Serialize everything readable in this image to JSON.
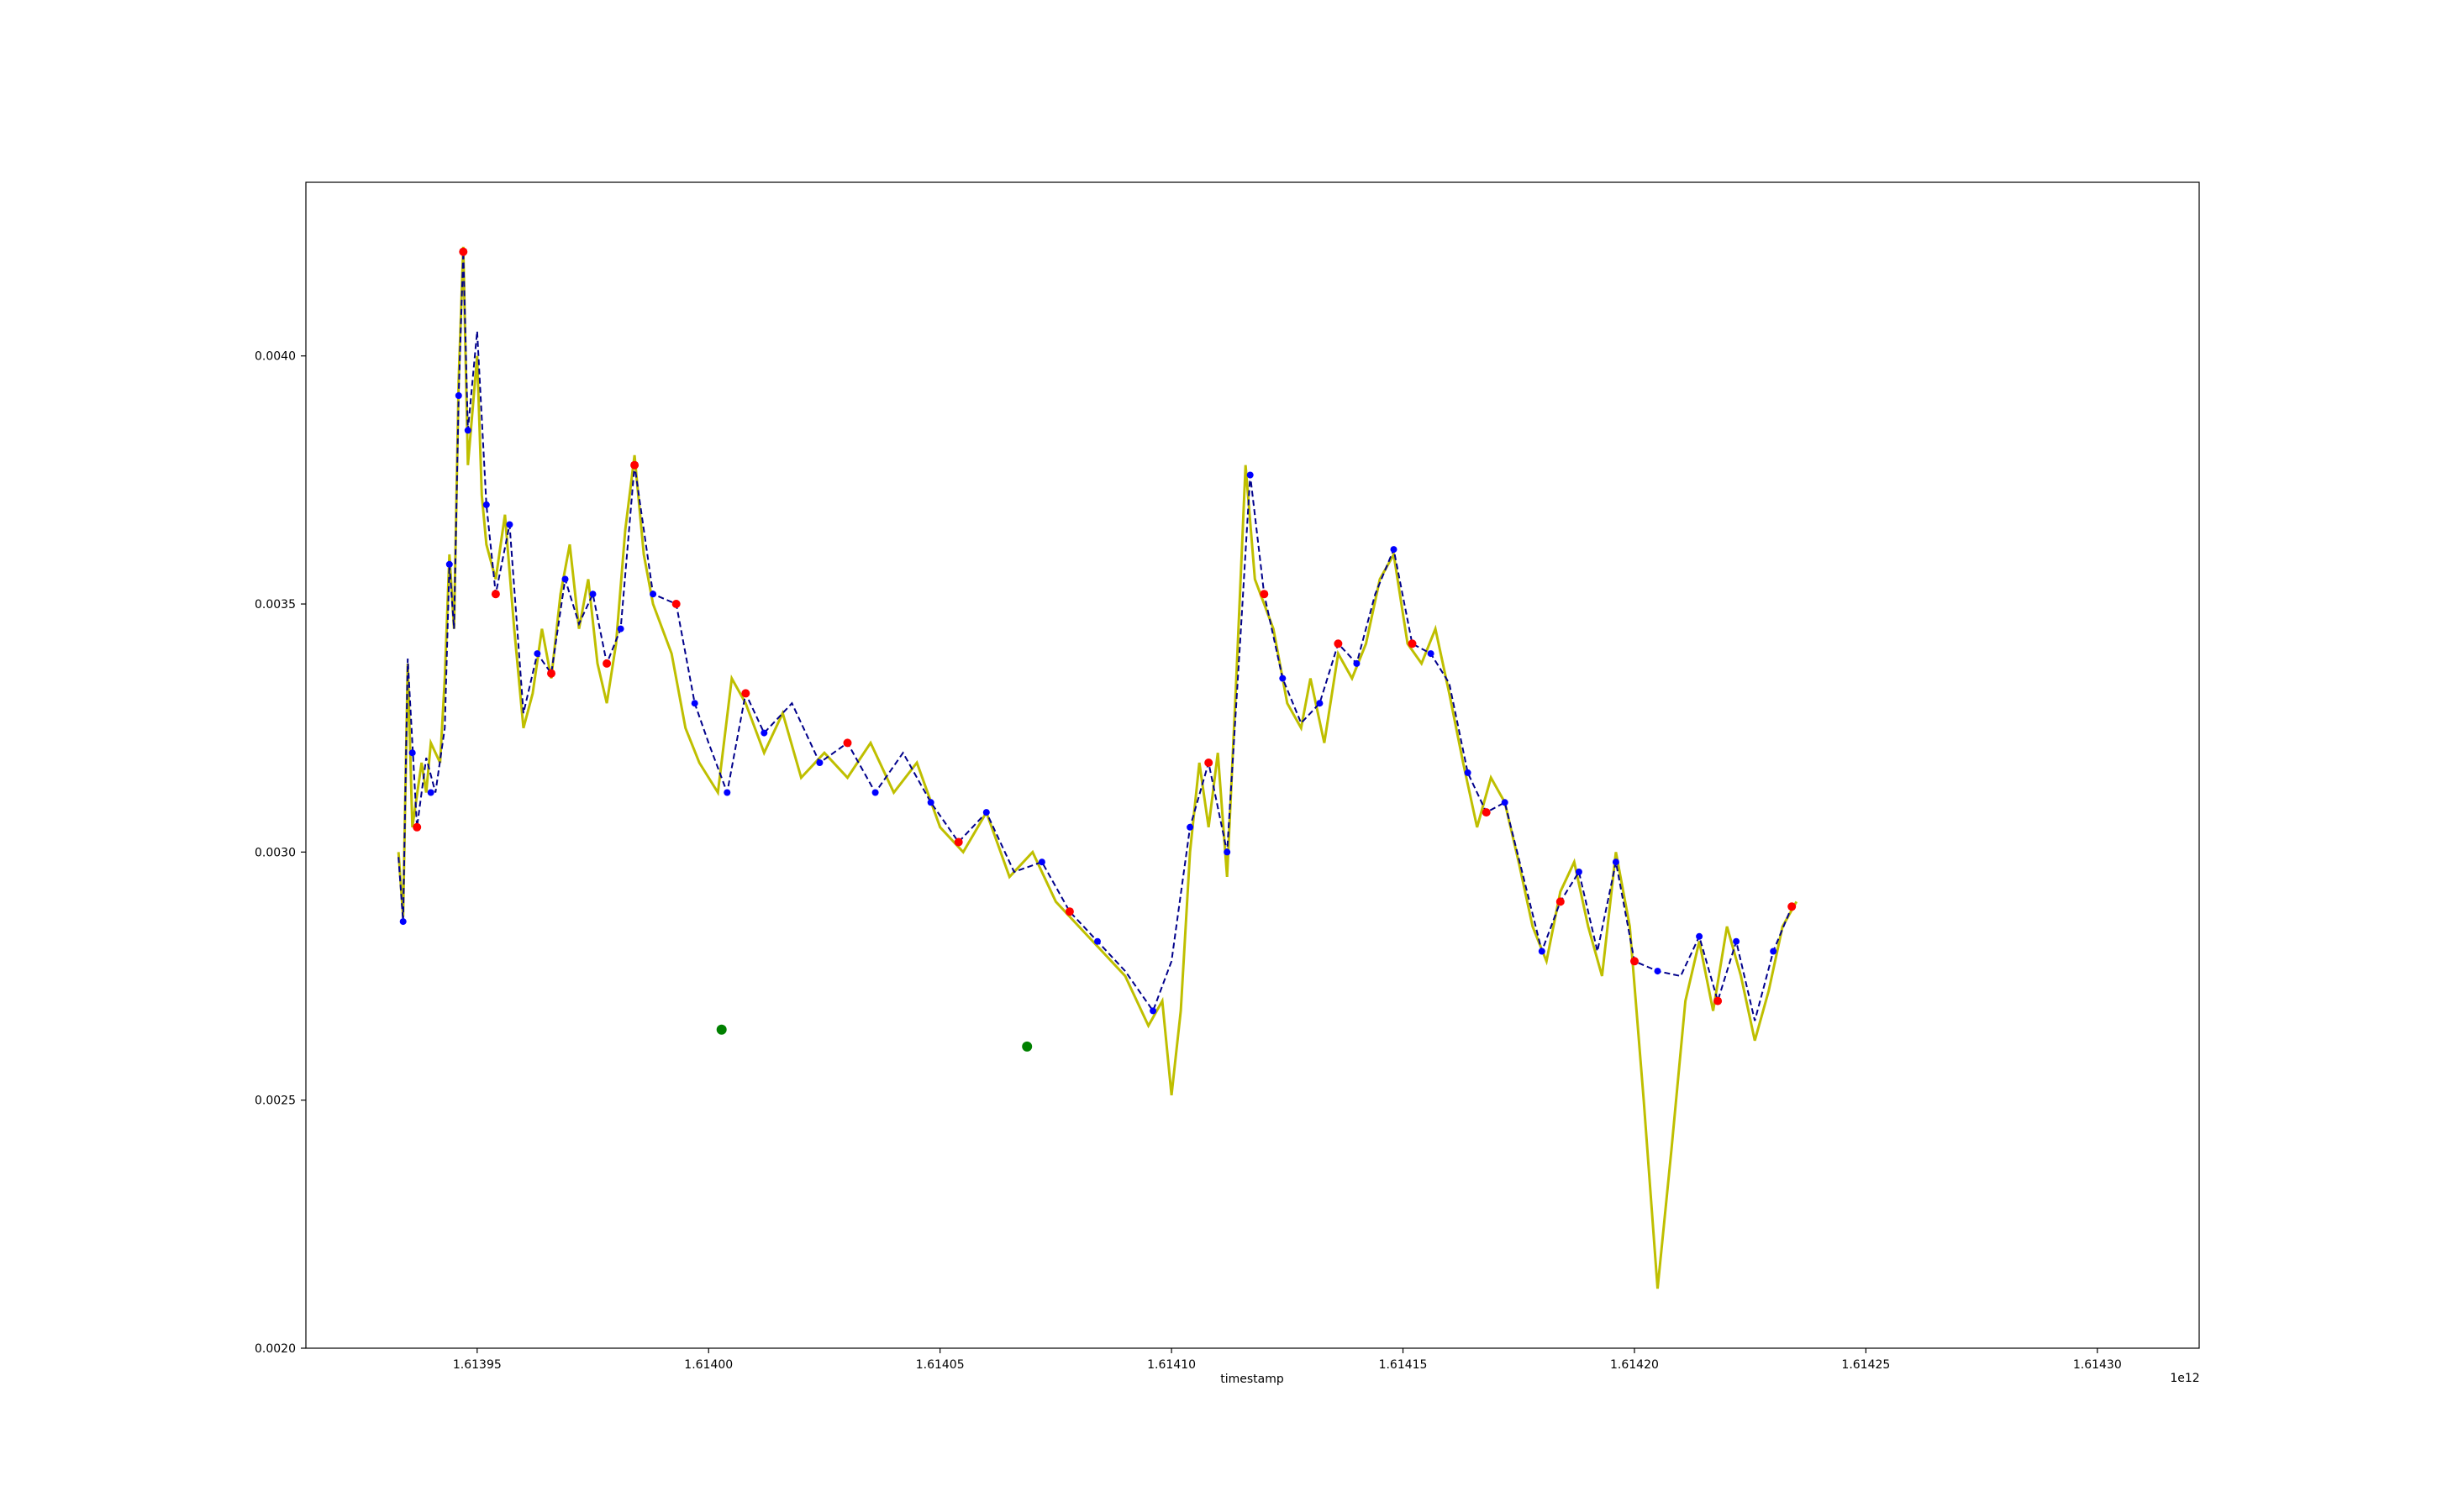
{
  "chart_data": {
    "type": "line",
    "title": "",
    "xlabel": "timestamp",
    "ylabel": "",
    "x_offset_label": "1e12",
    "xlim": [
      1.613913,
      1.614322
    ],
    "ylim": [
      0.002,
      0.00435
    ],
    "x_ticks": [
      1.61395,
      1.614,
      1.61405,
      1.6141,
      1.61415,
      1.6142,
      1.61425,
      1.6143
    ],
    "x_tick_labels": [
      "1.61395",
      "1.61400",
      "1.61405",
      "1.61410",
      "1.61415",
      "1.61420",
      "1.61425",
      "1.61430"
    ],
    "y_ticks": [
      0.002,
      0.0025,
      0.003,
      0.0035,
      0.004
    ],
    "y_tick_labels": [
      "0.0020",
      "0.0025",
      "0.0030",
      "0.0035",
      "0.0040"
    ],
    "grid": false,
    "legend": "none",
    "colors": {
      "price_line": "#bfbf00",
      "smoothed_line": "#00008b",
      "blue_markers": "#0000ff",
      "red_markers": "#ff0000",
      "green_markers": "#008000"
    },
    "series": [
      {
        "style": "solid",
        "color": "#bfbf00",
        "points": [
          [
            1.613933,
            0.003
          ],
          [
            1.613934,
            0.00287
          ],
          [
            1.613935,
            0.00338
          ],
          [
            1.613936,
            0.00305
          ],
          [
            1.613938,
            0.00318
          ],
          [
            1.613939,
            0.00312
          ],
          [
            1.61394,
            0.00322
          ],
          [
            1.613942,
            0.00318
          ],
          [
            1.613943,
            0.00335
          ],
          [
            1.613944,
            0.0036
          ],
          [
            1.613945,
            0.00345
          ],
          [
            1.613946,
            0.00395
          ],
          [
            1.613947,
            0.00422
          ],
          [
            1.613948,
            0.00378
          ],
          [
            1.61395,
            0.004
          ],
          [
            1.613951,
            0.00372
          ],
          [
            1.613952,
            0.00362
          ],
          [
            1.613954,
            0.00355
          ],
          [
            1.613956,
            0.00368
          ],
          [
            1.613958,
            0.00345
          ],
          [
            1.61396,
            0.00325
          ],
          [
            1.613962,
            0.00332
          ],
          [
            1.613964,
            0.00345
          ],
          [
            1.613966,
            0.00335
          ],
          [
            1.613968,
            0.00352
          ],
          [
            1.61397,
            0.00362
          ],
          [
            1.613972,
            0.00345
          ],
          [
            1.613974,
            0.00355
          ],
          [
            1.613976,
            0.00338
          ],
          [
            1.613978,
            0.0033
          ],
          [
            1.61398,
            0.00342
          ],
          [
            1.613982,
            0.00365
          ],
          [
            1.613984,
            0.0038
          ],
          [
            1.613986,
            0.0036
          ],
          [
            1.613988,
            0.0035
          ],
          [
            1.613992,
            0.0034
          ],
          [
            1.613995,
            0.00325
          ],
          [
            1.613998,
            0.00318
          ],
          [
            1.614002,
            0.00312
          ],
          [
            1.614005,
            0.00335
          ],
          [
            1.614008,
            0.0033
          ],
          [
            1.614012,
            0.0032
          ],
          [
            1.614016,
            0.00328
          ],
          [
            1.61402,
            0.00315
          ],
          [
            1.614025,
            0.0032
          ],
          [
            1.61403,
            0.00315
          ],
          [
            1.614035,
            0.00322
          ],
          [
            1.61404,
            0.00312
          ],
          [
            1.614045,
            0.00318
          ],
          [
            1.61405,
            0.00305
          ],
          [
            1.614055,
            0.003
          ],
          [
            1.61406,
            0.00308
          ],
          [
            1.614065,
            0.00295
          ],
          [
            1.61407,
            0.003
          ],
          [
            1.614075,
            0.0029
          ],
          [
            1.61408,
            0.00285
          ],
          [
            1.614085,
            0.0028
          ],
          [
            1.61409,
            0.00275
          ],
          [
            1.614095,
            0.00265
          ],
          [
            1.614098,
            0.0027
          ],
          [
            1.6141,
            0.00251
          ],
          [
            1.614102,
            0.00268
          ],
          [
            1.614104,
            0.003
          ],
          [
            1.614106,
            0.00318
          ],
          [
            1.614108,
            0.00305
          ],
          [
            1.61411,
            0.0032
          ],
          [
            1.614112,
            0.00295
          ],
          [
            1.614114,
            0.00335
          ],
          [
            1.614116,
            0.00378
          ],
          [
            1.614118,
            0.00355
          ],
          [
            1.61412,
            0.0035
          ],
          [
            1.614122,
            0.00345
          ],
          [
            1.614125,
            0.0033
          ],
          [
            1.614128,
            0.00325
          ],
          [
            1.61413,
            0.00335
          ],
          [
            1.614133,
            0.00322
          ],
          [
            1.614136,
            0.0034
          ],
          [
            1.614139,
            0.00335
          ],
          [
            1.614142,
            0.00342
          ],
          [
            1.614145,
            0.00355
          ],
          [
            1.614148,
            0.0036
          ],
          [
            1.614151,
            0.00342
          ],
          [
            1.614154,
            0.00338
          ],
          [
            1.614157,
            0.00345
          ],
          [
            1.61416,
            0.00332
          ],
          [
            1.614163,
            0.00318
          ],
          [
            1.614166,
            0.00305
          ],
          [
            1.614169,
            0.00315
          ],
          [
            1.614172,
            0.0031
          ],
          [
            1.614175,
            0.00298
          ],
          [
            1.614178,
            0.00285
          ],
          [
            1.614181,
            0.00278
          ],
          [
            1.614184,
            0.00292
          ],
          [
            1.614187,
            0.00298
          ],
          [
            1.61419,
            0.00285
          ],
          [
            1.614193,
            0.00275
          ],
          [
            1.614196,
            0.003
          ],
          [
            1.614199,
            0.00285
          ],
          [
            1.614202,
            0.0025
          ],
          [
            1.614205,
            0.00212
          ],
          [
            1.614208,
            0.0024
          ],
          [
            1.614211,
            0.0027
          ],
          [
            1.614214,
            0.00282
          ],
          [
            1.614217,
            0.00268
          ],
          [
            1.61422,
            0.00285
          ],
          [
            1.614223,
            0.00275
          ],
          [
            1.614226,
            0.00262
          ],
          [
            1.614229,
            0.00272
          ],
          [
            1.614232,
            0.00285
          ],
          [
            1.614235,
            0.0029
          ]
        ]
      },
      {
        "style": "dashed",
        "color": "#00008b",
        "points": [
          [
            1.613933,
            0.00299
          ],
          [
            1.613934,
            0.00286
          ],
          [
            1.613935,
            0.00339
          ],
          [
            1.613937,
            0.00305
          ],
          [
            1.613939,
            0.00319
          ],
          [
            1.613941,
            0.00312
          ],
          [
            1.613943,
            0.00325
          ],
          [
            1.613944,
            0.00358
          ],
          [
            1.613945,
            0.00345
          ],
          [
            1.613946,
            0.00392
          ],
          [
            1.613947,
            0.00421
          ],
          [
            1.613948,
            0.00385
          ],
          [
            1.61395,
            0.00405
          ],
          [
            1.613952,
            0.0037
          ],
          [
            1.613954,
            0.00352
          ],
          [
            1.613957,
            0.00366
          ],
          [
            1.61396,
            0.00328
          ],
          [
            1.613963,
            0.0034
          ],
          [
            1.613966,
            0.00336
          ],
          [
            1.613969,
            0.00355
          ],
          [
            1.613972,
            0.00346
          ],
          [
            1.613975,
            0.00352
          ],
          [
            1.613978,
            0.00338
          ],
          [
            1.613981,
            0.00345
          ],
          [
            1.613984,
            0.00378
          ],
          [
            1.613988,
            0.00352
          ],
          [
            1.613993,
            0.0035
          ],
          [
            1.613997,
            0.0033
          ],
          [
            1.614,
            0.00322
          ],
          [
            1.614004,
            0.00312
          ],
          [
            1.614008,
            0.00332
          ],
          [
            1.614012,
            0.00324
          ],
          [
            1.614018,
            0.0033
          ],
          [
            1.614024,
            0.00318
          ],
          [
            1.61403,
            0.00322
          ],
          [
            1.614036,
            0.00312
          ],
          [
            1.614042,
            0.0032
          ],
          [
            1.614048,
            0.0031
          ],
          [
            1.614054,
            0.00302
          ],
          [
            1.61406,
            0.00308
          ],
          [
            1.614066,
            0.00296
          ],
          [
            1.614072,
            0.00298
          ],
          [
            1.614078,
            0.00288
          ],
          [
            1.614084,
            0.00282
          ],
          [
            1.61409,
            0.00276
          ],
          [
            1.614096,
            0.00268
          ],
          [
            1.6141,
            0.00278
          ],
          [
            1.614104,
            0.00305
          ],
          [
            1.614108,
            0.00318
          ],
          [
            1.614112,
            0.003
          ],
          [
            1.614115,
            0.00345
          ],
          [
            1.614117,
            0.00376
          ],
          [
            1.61412,
            0.00352
          ],
          [
            1.614124,
            0.00335
          ],
          [
            1.614128,
            0.00326
          ],
          [
            1.614132,
            0.0033
          ],
          [
            1.614136,
            0.00342
          ],
          [
            1.61414,
            0.00338
          ],
          [
            1.614144,
            0.00352
          ],
          [
            1.614148,
            0.00361
          ],
          [
            1.614152,
            0.00342
          ],
          [
            1.614156,
            0.0034
          ],
          [
            1.61416,
            0.00334
          ],
          [
            1.614164,
            0.00316
          ],
          [
            1.614168,
            0.00308
          ],
          [
            1.614172,
            0.0031
          ],
          [
            1.614176,
            0.00295
          ],
          [
            1.61418,
            0.0028
          ],
          [
            1.614184,
            0.0029
          ],
          [
            1.614188,
            0.00296
          ],
          [
            1.614192,
            0.0028
          ],
          [
            1.614196,
            0.00298
          ],
          [
            1.6142,
            0.00278
          ],
          [
            1.614205,
            0.00276
          ],
          [
            1.61421,
            0.00275
          ],
          [
            1.614214,
            0.00283
          ],
          [
            1.614218,
            0.0027
          ],
          [
            1.614222,
            0.00282
          ],
          [
            1.614226,
            0.00266
          ],
          [
            1.61423,
            0.0028
          ],
          [
            1.614234,
            0.00289
          ]
        ]
      }
    ],
    "markers": {
      "blue": [
        [
          1.613934,
          0.00286
        ],
        [
          1.613936,
          0.0032
        ],
        [
          1.61394,
          0.00312
        ],
        [
          1.613944,
          0.00358
        ],
        [
          1.613946,
          0.00392
        ],
        [
          1.613948,
          0.00385
        ],
        [
          1.613952,
          0.0037
        ],
        [
          1.613957,
          0.00366
        ],
        [
          1.613963,
          0.0034
        ],
        [
          1.613969,
          0.00355
        ],
        [
          1.613975,
          0.00352
        ],
        [
          1.613981,
          0.00345
        ],
        [
          1.613988,
          0.00352
        ],
        [
          1.613997,
          0.0033
        ],
        [
          1.614004,
          0.00312
        ],
        [
          1.614012,
          0.00324
        ],
        [
          1.614024,
          0.00318
        ],
        [
          1.614036,
          0.00312
        ],
        [
          1.614048,
          0.0031
        ],
        [
          1.61406,
          0.00308
        ],
        [
          1.614072,
          0.00298
        ],
        [
          1.614084,
          0.00282
        ],
        [
          1.614096,
          0.00268
        ],
        [
          1.614104,
          0.00305
        ],
        [
          1.614112,
          0.003
        ],
        [
          1.614117,
          0.00376
        ],
        [
          1.614124,
          0.00335
        ],
        [
          1.614132,
          0.0033
        ],
        [
          1.61414,
          0.00338
        ],
        [
          1.614148,
          0.00361
        ],
        [
          1.614156,
          0.0034
        ],
        [
          1.614164,
          0.00316
        ],
        [
          1.614172,
          0.0031
        ],
        [
          1.61418,
          0.0028
        ],
        [
          1.614188,
          0.00296
        ],
        [
          1.614196,
          0.00298
        ],
        [
          1.614205,
          0.00276
        ],
        [
          1.614214,
          0.00283
        ],
        [
          1.614222,
          0.00282
        ],
        [
          1.61423,
          0.0028
        ]
      ],
      "red": [
        [
          1.613937,
          0.00305
        ],
        [
          1.613947,
          0.00421
        ],
        [
          1.613954,
          0.00352
        ],
        [
          1.613966,
          0.00336
        ],
        [
          1.613978,
          0.00338
        ],
        [
          1.613984,
          0.00378
        ],
        [
          1.613993,
          0.0035
        ],
        [
          1.614008,
          0.00332
        ],
        [
          1.61403,
          0.00322
        ],
        [
          1.614054,
          0.00302
        ],
        [
          1.614078,
          0.00288
        ],
        [
          1.614108,
          0.00318
        ],
        [
          1.61412,
          0.00352
        ],
        [
          1.614136,
          0.00342
        ],
        [
          1.614152,
          0.00342
        ],
        [
          1.614168,
          0.00308
        ],
        [
          1.614184,
          0.0029
        ],
        [
          1.6142,
          0.00278
        ],
        [
          1.614218,
          0.0027
        ],
        [
          1.614234,
          0.00289
        ]
      ],
      "green": [
        [
          1.6140028,
          0.002642
        ],
        [
          1.6140688,
          0.002608
        ]
      ]
    }
  }
}
